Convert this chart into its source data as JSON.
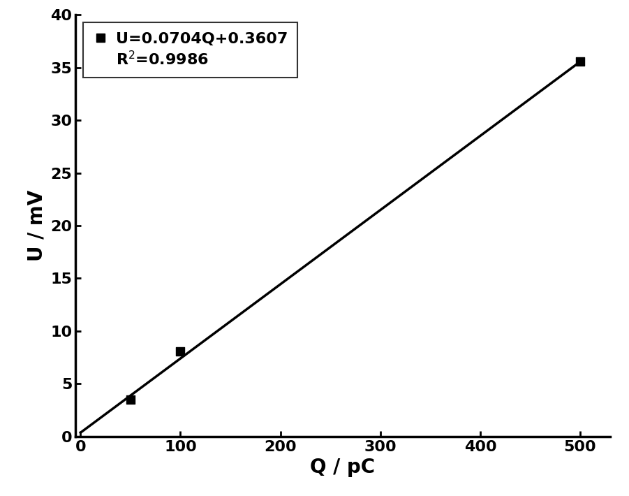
{
  "scatter_x": [
    50,
    100,
    500
  ],
  "scatter_y": [
    3.5,
    8.1,
    35.6
  ],
  "line_slope": 0.0704,
  "line_intercept": 0.3607,
  "line_x_start": 0,
  "line_x_end": 500,
  "xlabel": "Q / pC",
  "ylabel": "U / mV",
  "xlim": [
    -5,
    530
  ],
  "ylim": [
    0,
    40
  ],
  "xticks": [
    0,
    100,
    200,
    300,
    400,
    500
  ],
  "yticks": [
    0,
    5,
    10,
    15,
    20,
    25,
    30,
    35,
    40
  ],
  "legend_line1": "U=0.0704Q+0.3607",
  "legend_line2": "R$^2$=0.9986",
  "marker_color": "#000000",
  "line_color": "#000000",
  "bg_color": "#ffffff",
  "marker_size": 9,
  "line_width": 2.5,
  "xlabel_fontsize": 20,
  "ylabel_fontsize": 20,
  "tick_fontsize": 16,
  "legend_fontsize": 16,
  "spine_linewidth": 2.5
}
